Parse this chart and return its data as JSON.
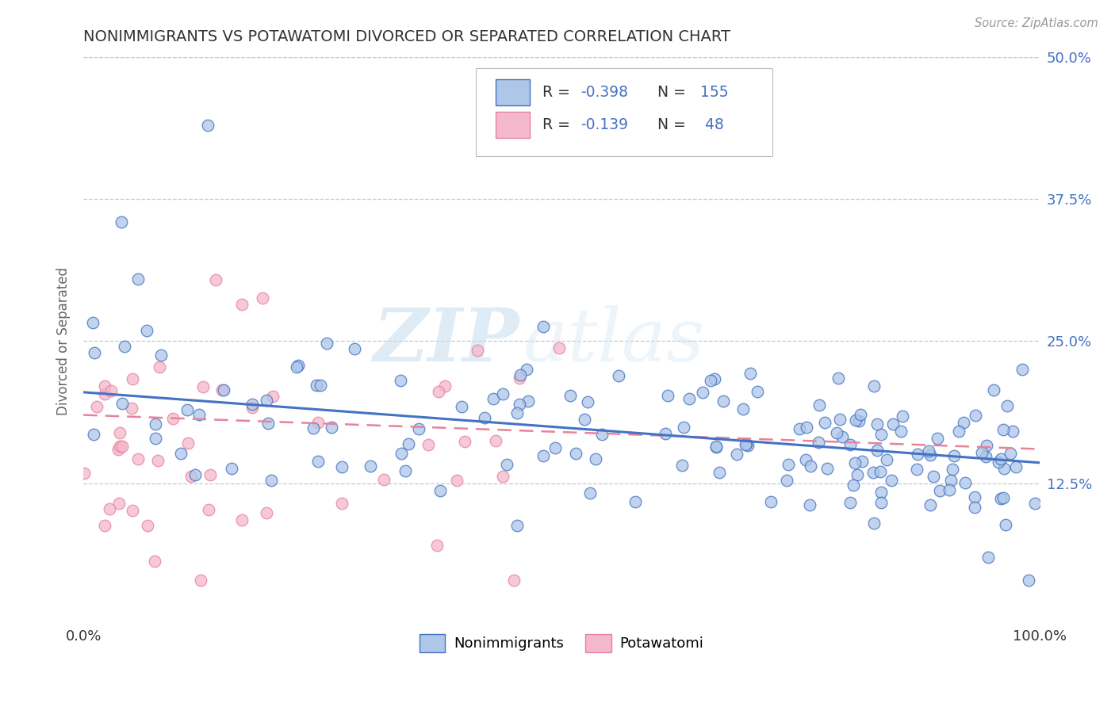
{
  "title": "NONIMMIGRANTS VS POTAWATOMI DIVORCED OR SEPARATED CORRELATION CHART",
  "source": "Source: ZipAtlas.com",
  "ylabel": "Divorced or Separated",
  "xlim": [
    0,
    1.0
  ],
  "ylim": [
    0,
    0.5
  ],
  "yticks": [
    0.125,
    0.25,
    0.375,
    0.5
  ],
  "ytick_labels": [
    "12.5%",
    "25.0%",
    "37.5%",
    "50.0%"
  ],
  "xtick_labels": [
    "0.0%",
    "100.0%"
  ],
  "color_blue_fill": "#aec6e8",
  "color_blue_edge": "#4472c4",
  "color_pink_fill": "#f4b8cc",
  "color_pink_edge": "#e8829a",
  "color_pink_line": "#e8829a",
  "color_blue_line": "#4472c4",
  "watermark_zip": "ZIP",
  "watermark_atlas": "atlas",
  "blue_intercept": 0.205,
  "blue_slope": -0.062,
  "pink_intercept": 0.185,
  "pink_slope": -0.03,
  "background": "#ffffff",
  "grid_color": "#c8c8c8",
  "legend_label_color": "#333333",
  "legend_value_color": "#4472c4",
  "title_color": "#333333",
  "ylabel_color": "#666666",
  "ytick_color": "#4472c4",
  "xtick_color": "#333333"
}
